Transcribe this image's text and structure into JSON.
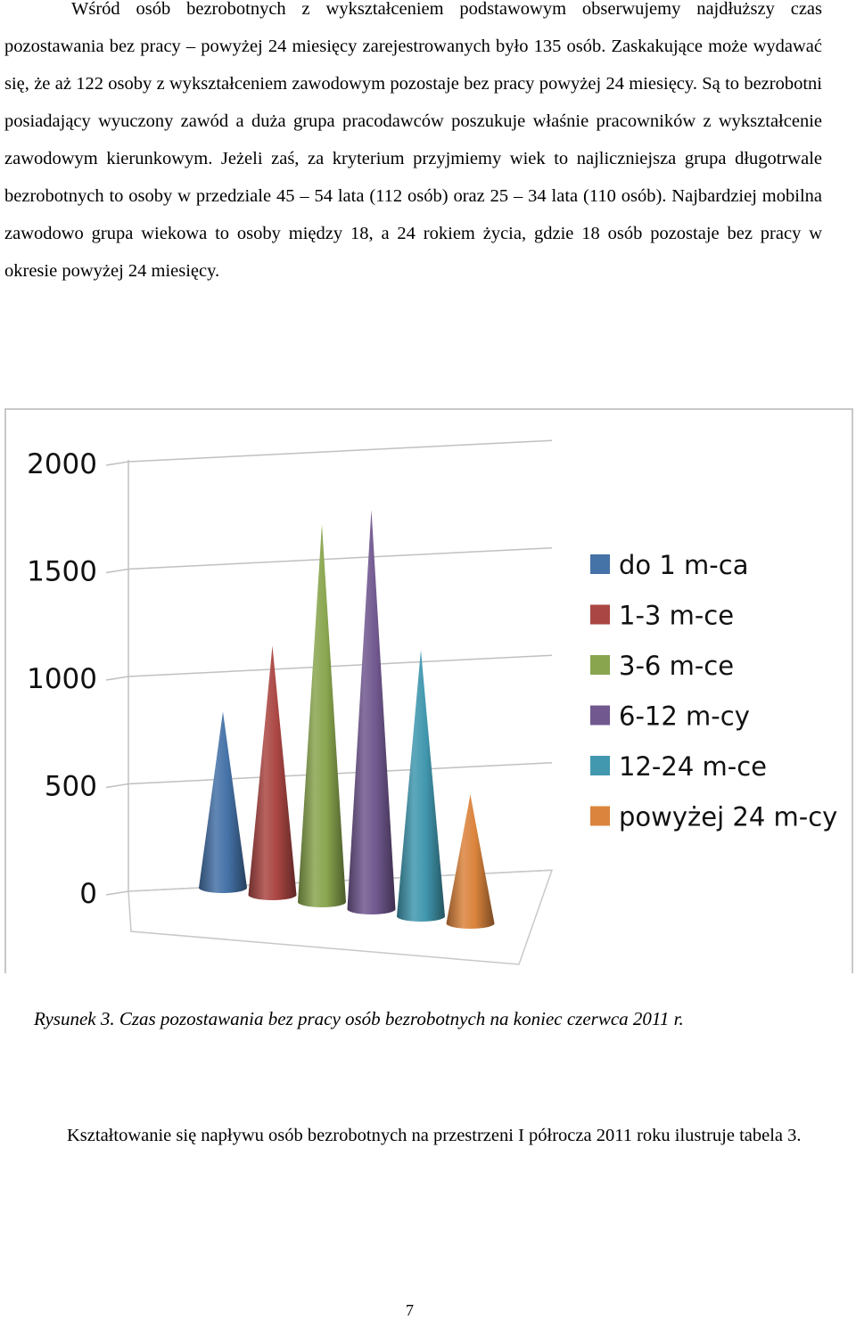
{
  "text": {
    "paragraph1": "Wśród osób bezrobotnych z wykształceniem podstawowym obserwujemy najdłuższy czas pozostawania bez pracy – powyżej 24 miesięcy zarejestrowanych było 135 osób. Zaskakujące może wydawać się, że aż 122 osoby z wykształceniem zawodowym pozostaje bez pracy powyżej 24 miesięcy. Są to bezrobotni posiadający wyuczony zawód a duża grupa pracodawców poszukuje właśnie pracowników z wykształcenie zawodowym kierunkowym. Jeżeli zaś, za kryterium przyjmiemy wiek to najliczniejsza grupa długotrwale bezrobotnych to osoby w przedziale 45 – 54 lata (112 osób) oraz 25 – 34 lata (110 osób). Najbardziej mobilna zawodowo grupa wiekowa to osoby między 18, a 24 rokiem życia, gdzie 18 osób pozostaje bez pracy w okresie powyżej 24 miesięcy.",
    "caption": "Rysunek 3. Czas pozostawania bez pracy osób bezrobotnych na koniec czerwca 2011 r.",
    "paragraph2": "Kształtowanie się napływu osób bezrobotnych na przestrzeni I półrocza 2011 roku ilustruje tabela 3.",
    "page_number": "7"
  },
  "chart_data": {
    "type": "bar",
    "style": "3d-cone",
    "categories": [
      "do 1 m-ca",
      "1-3 m-ce",
      "3-6 m-ce",
      "6-12 m-cy",
      "12-24 m-ce",
      "powyżej 24 m-cy"
    ],
    "values": [
      820,
      1160,
      1760,
      1860,
      1240,
      600
    ],
    "colors": [
      "#4572a7",
      "#aa4643",
      "#89a54e",
      "#71588f",
      "#4198af",
      "#db843d"
    ],
    "yticks": [
      0,
      500,
      1000,
      1500,
      2000
    ],
    "ylim": [
      0,
      2000
    ],
    "grid": true,
    "legend": "right"
  }
}
